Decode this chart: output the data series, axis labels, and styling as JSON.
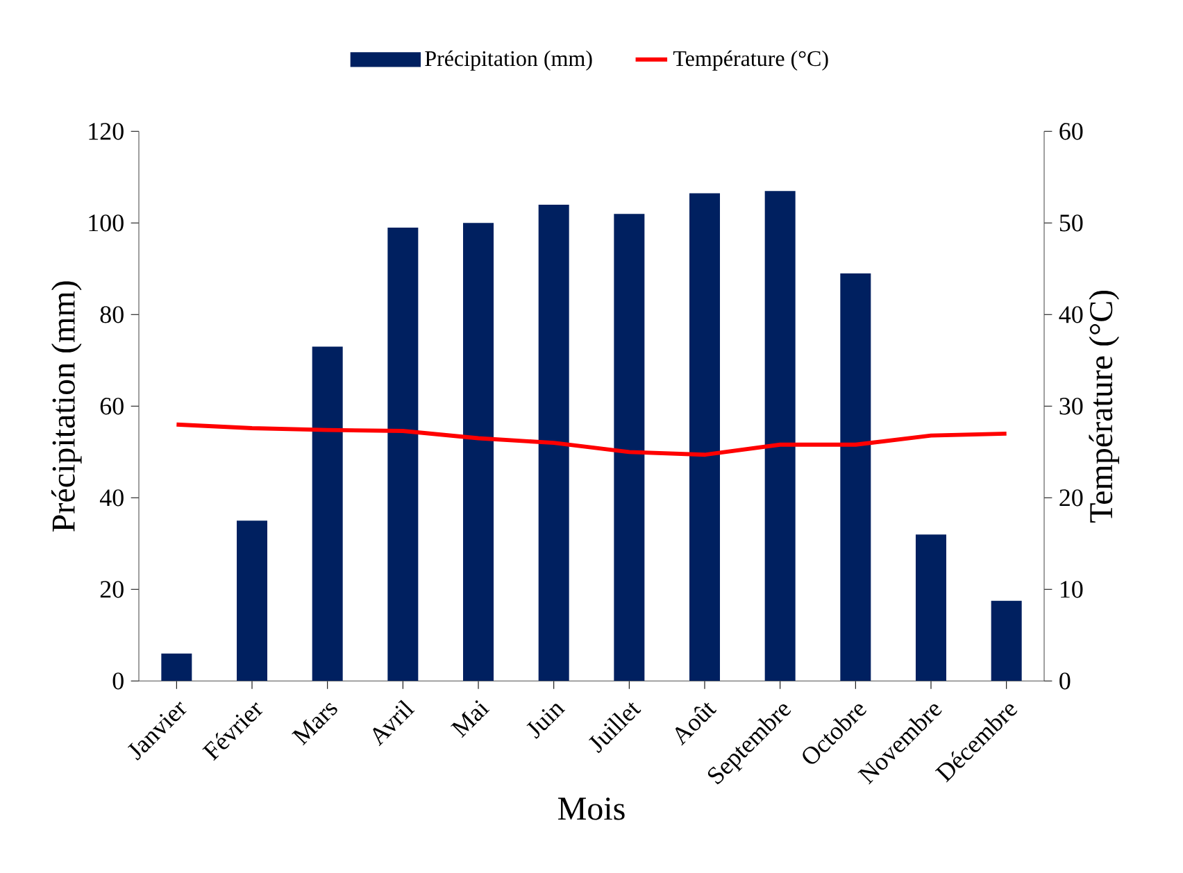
{
  "chart_data": {
    "type": "bar",
    "xlabel": "Mois",
    "ylabel": "Précipitation (mm)",
    "y2label": "Température (°C)",
    "categories": [
      "Janvier",
      "Février",
      "Mars",
      "Avril",
      "Mai",
      "Juin",
      "Juillet",
      "Août",
      "Septembre",
      "Octobre",
      "Novembre",
      "Décembre"
    ],
    "series": [
      {
        "name": "Précipitation (mm)",
        "type": "bar",
        "color": "#002060",
        "values": [
          6,
          35,
          73,
          99,
          100,
          104,
          102,
          106.5,
          107,
          89,
          32,
          17.5
        ]
      },
      {
        "name": "Température (°C)",
        "type": "line",
        "axis": "y2",
        "color": "#ff0000",
        "values": [
          28,
          27.6,
          27.4,
          27.3,
          26.5,
          26,
          25,
          24.7,
          25.8,
          25.8,
          26.8,
          27
        ]
      }
    ],
    "ylim": [
      0,
      120
    ],
    "yticks": [
      0,
      20,
      40,
      60,
      80,
      100,
      120
    ],
    "y2lim": [
      0,
      60
    ],
    "y2ticks": [
      0,
      10,
      20,
      30,
      40,
      50,
      60
    ],
    "legend": "top"
  }
}
